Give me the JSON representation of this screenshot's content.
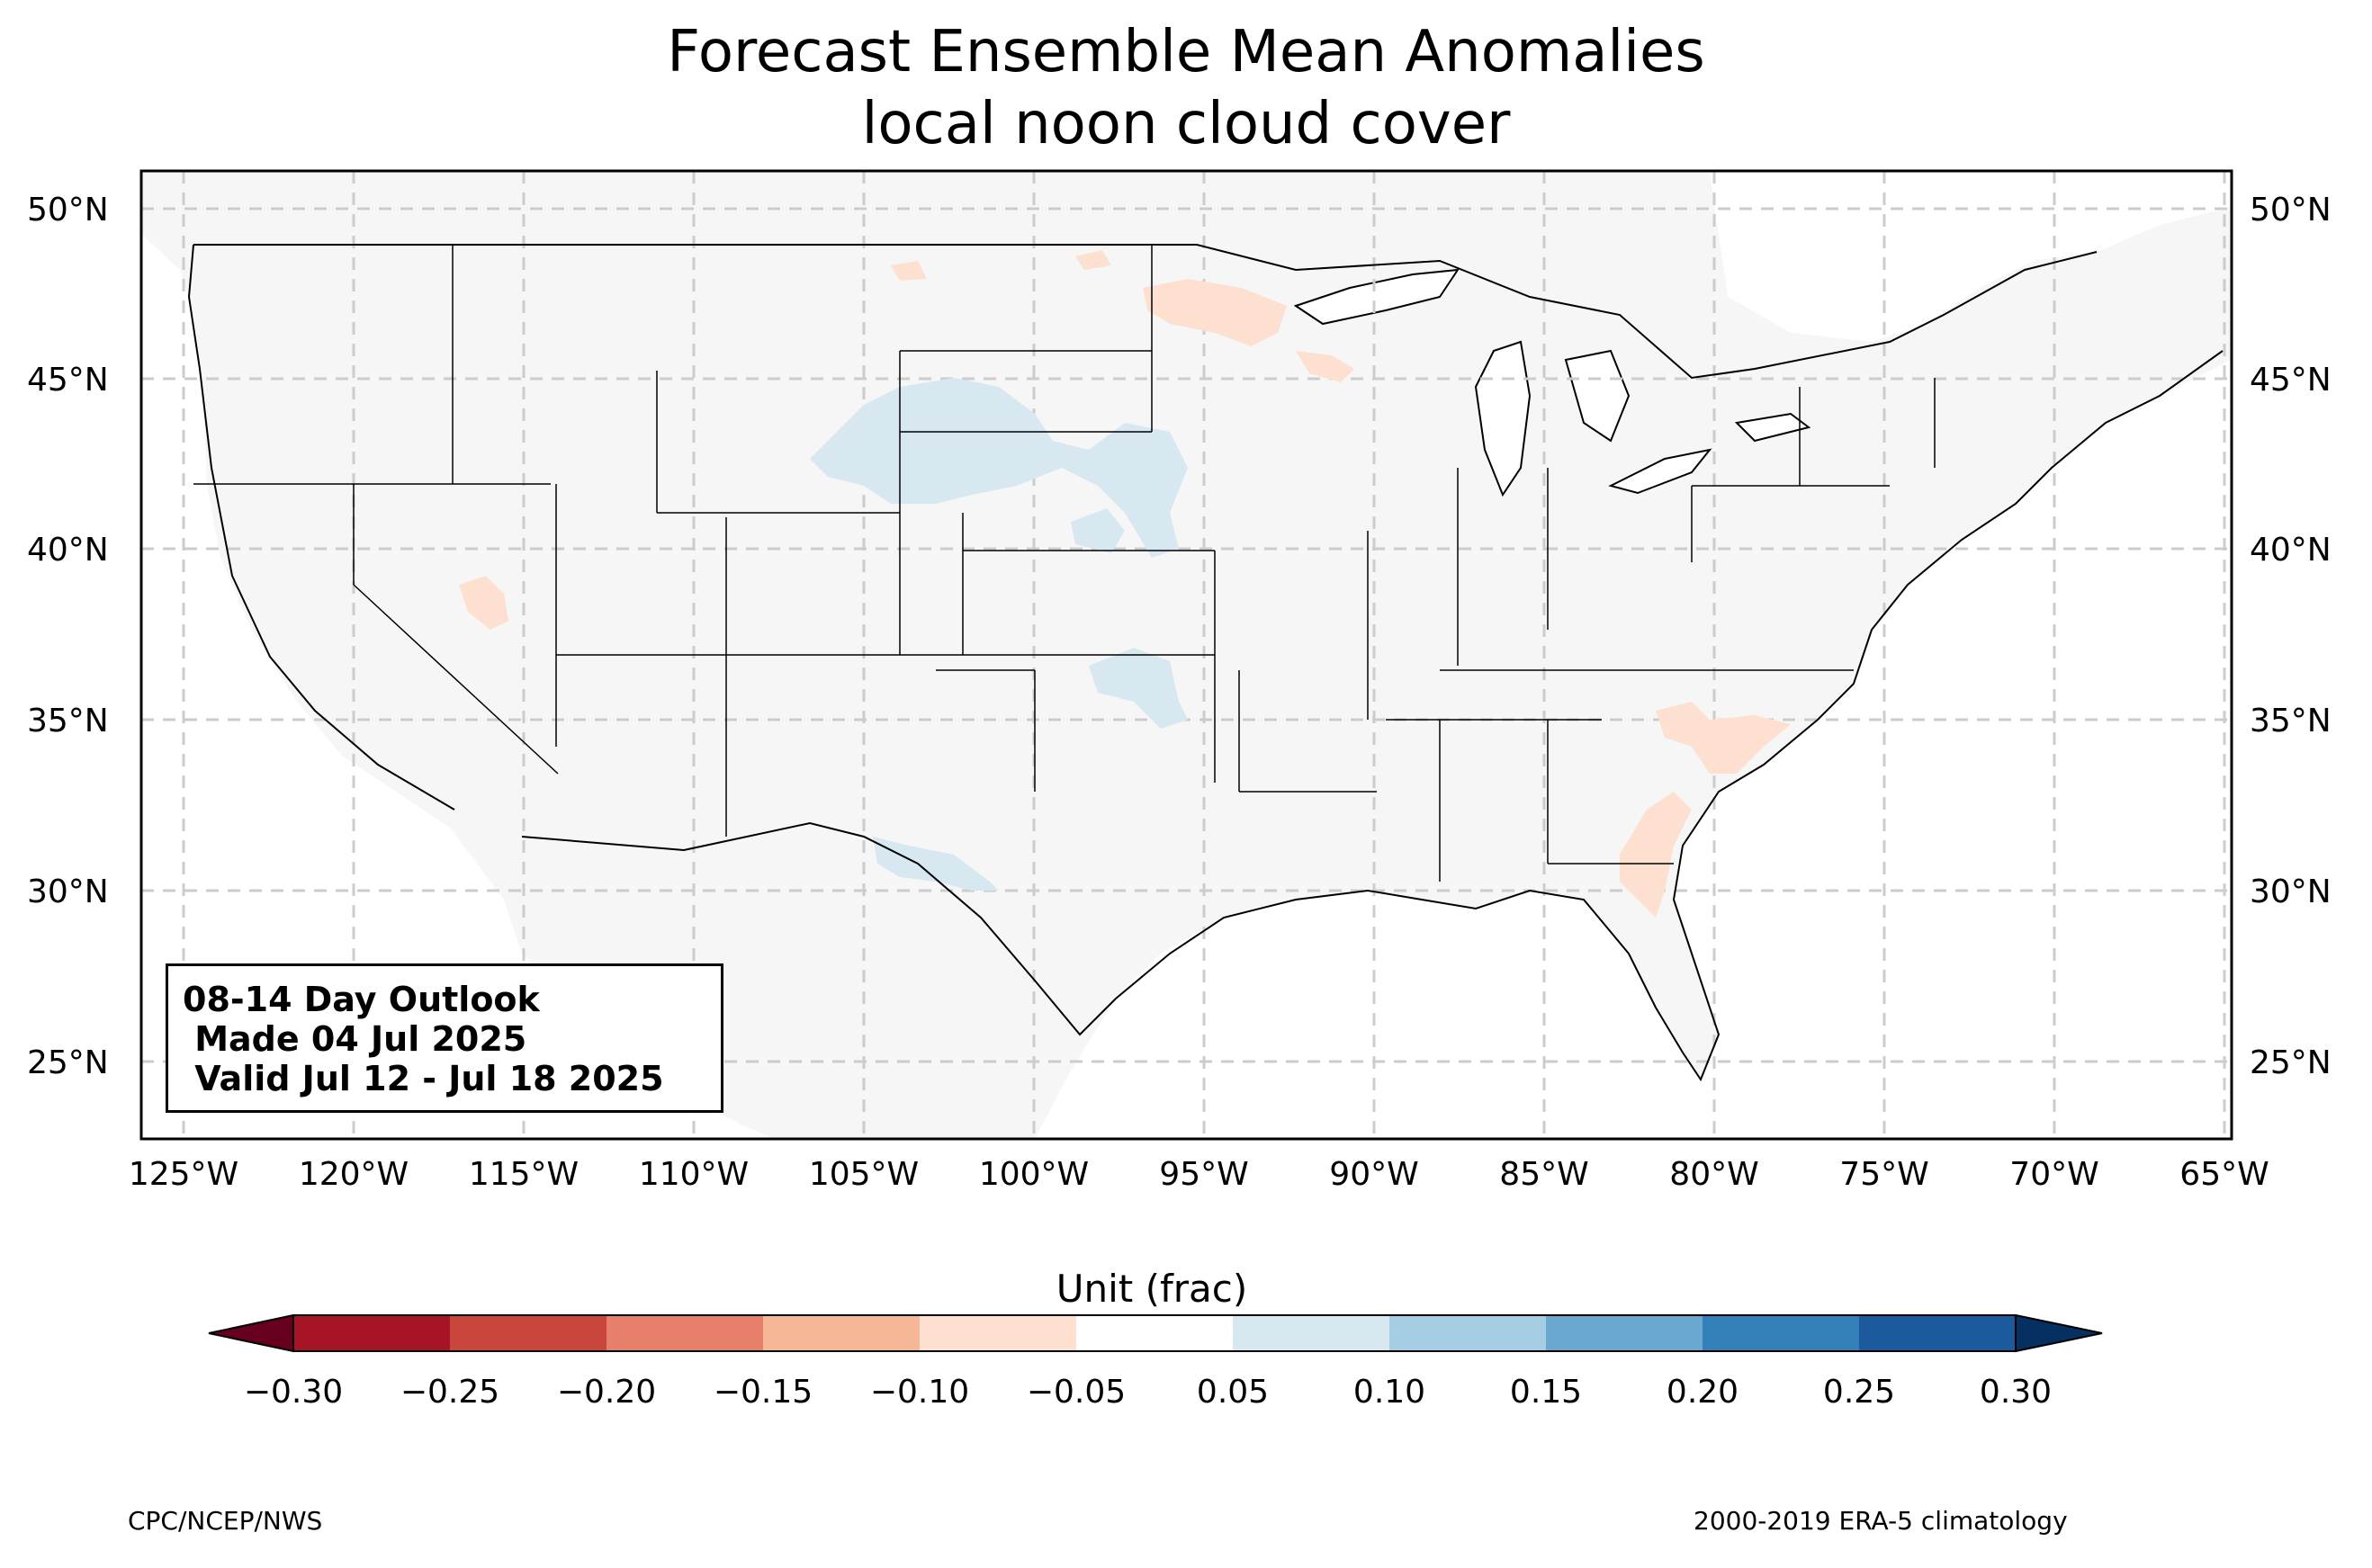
{
  "title": "Forecast Ensemble Mean Anomalies",
  "subtitle": "local noon cloud cover",
  "outlook": {
    "line1": "08-14 Day Outlook",
    "line2": " Made 04 Jul 2025",
    "line3": " Valid Jul 12 - Jul 18 2025"
  },
  "latitude_labels": [
    "50°N",
    "45°N",
    "40°N",
    "35°N",
    "30°N",
    "25°N"
  ],
  "longitude_labels": [
    "125°W",
    "120°W",
    "115°W",
    "110°W",
    "105°W",
    "100°W",
    "95°W",
    "90°W",
    "85°W",
    "80°W",
    "75°W",
    "70°W",
    "65°W"
  ],
  "colorbar": {
    "title": "Unit (frac)",
    "tick_labels": [
      "−0.30",
      "−0.25",
      "−0.20",
      "−0.15",
      "−0.10",
      "−0.05",
      "0.05",
      "0.10",
      "0.15",
      "0.20",
      "0.25",
      "0.30"
    ],
    "colors": [
      "#67001f",
      "#a51526",
      "#c9463d",
      "#e6806a",
      "#f6b797",
      "#fde0d0",
      "#ffffff",
      "#d7e8f1",
      "#a5cde3",
      "#6aa8cf",
      "#3480b9",
      "#1b5a9c",
      "#053061"
    ]
  },
  "footer": {
    "left": "CPC/NCEP/NWS",
    "right": "2000-2019 ERA-5 climatology"
  },
  "map_style": {
    "land": "#f6f6f6",
    "gridline": "#cccccc",
    "positive_anomaly": "#d7e8f1",
    "negative_anomaly": "#fde0d0"
  }
}
